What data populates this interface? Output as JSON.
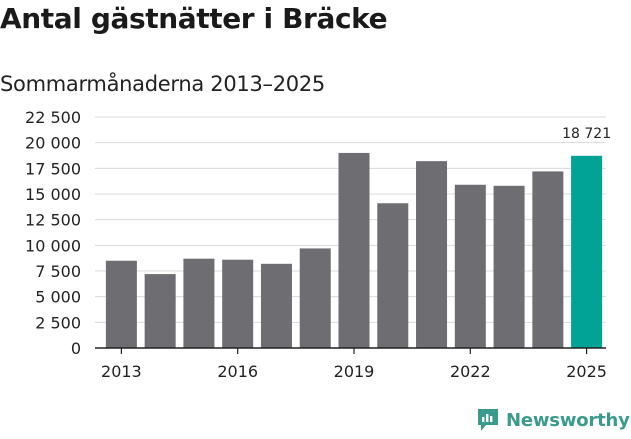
{
  "title": "Antal gästnätter i Bräcke",
  "subtitle": "Sommarmånaderna 2013–2025",
  "brand": {
    "name": "Newsworthy",
    "icon": "newsworthy-logo-icon",
    "color": "#3a9b8c"
  },
  "colors": {
    "bar": "#6e6d71",
    "highlight": "#00a396",
    "axis": "#222222",
    "grid": "#d9d9d9"
  },
  "chart_data": {
    "type": "bar",
    "title": "Antal gästnätter i Bräcke",
    "subtitle": "Sommarmånaderna 2013–2025",
    "xlabel": "",
    "ylabel": "",
    "categories": [
      "2013",
      "2014",
      "2015",
      "2016",
      "2017",
      "2018",
      "2019",
      "2020",
      "2021",
      "2022",
      "2023",
      "2024",
      "2025"
    ],
    "values": [
      8500,
      7200,
      8700,
      8600,
      8200,
      9700,
      19000,
      14100,
      18200,
      15900,
      15800,
      17200,
      18721
    ],
    "x_tick_labels": [
      "2013",
      "2016",
      "2019",
      "2022",
      "2025"
    ],
    "y_ticks": [
      0,
      2500,
      5000,
      7500,
      10000,
      12500,
      15000,
      17500,
      20000,
      22500
    ],
    "y_tick_labels": [
      "0",
      "2 500",
      "5 000",
      "7 500",
      "10 000",
      "12 500",
      "15 000",
      "17 500",
      "20 000",
      "22 500"
    ],
    "ylim": [
      0,
      22500
    ],
    "grid": true,
    "highlight_index": 12,
    "data_labels": [
      {
        "index": 12,
        "text": "18 721"
      }
    ]
  }
}
